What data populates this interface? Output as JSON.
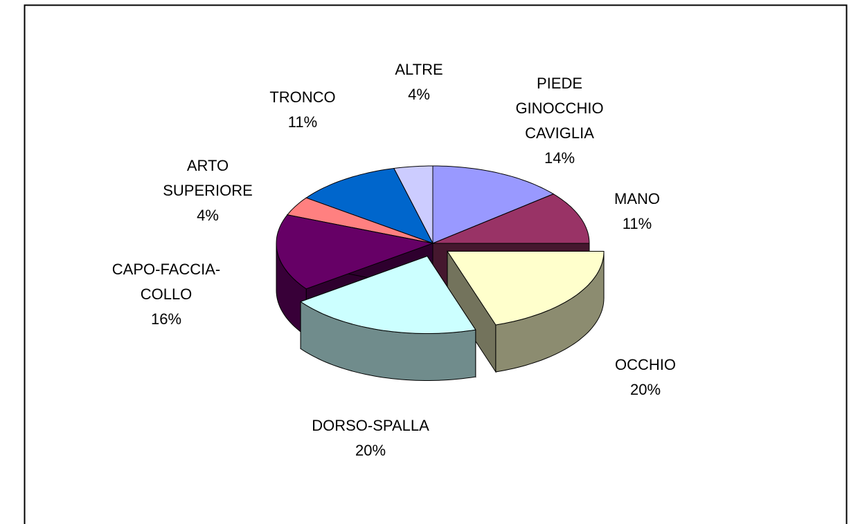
{
  "chart_data": {
    "type": "pie3d",
    "categories": [
      "PIEDE\nGINOCCHIO\nCAVIGLIA",
      "MANO",
      "OCCHIO",
      "DORSO-SPALLA",
      "CAPO-FACCIA-\nCOLLO",
      "ARTO\nSUPERIORE",
      "TRONCO",
      "ALTRE"
    ],
    "values": [
      14,
      11,
      20,
      20,
      16,
      4,
      11,
      4
    ],
    "value_labels": [
      "14%",
      "11%",
      "20%",
      "20%",
      "16%",
      "4%",
      "11%",
      "4%"
    ],
    "colors": [
      "#9999ff",
      "#993366",
      "#ffffcc",
      "#ccffff",
      "#660066",
      "#ff8080",
      "#0066cc",
      "#ccccff"
    ],
    "explode": [
      false,
      false,
      true,
      true,
      false,
      false,
      false,
      false
    ]
  }
}
